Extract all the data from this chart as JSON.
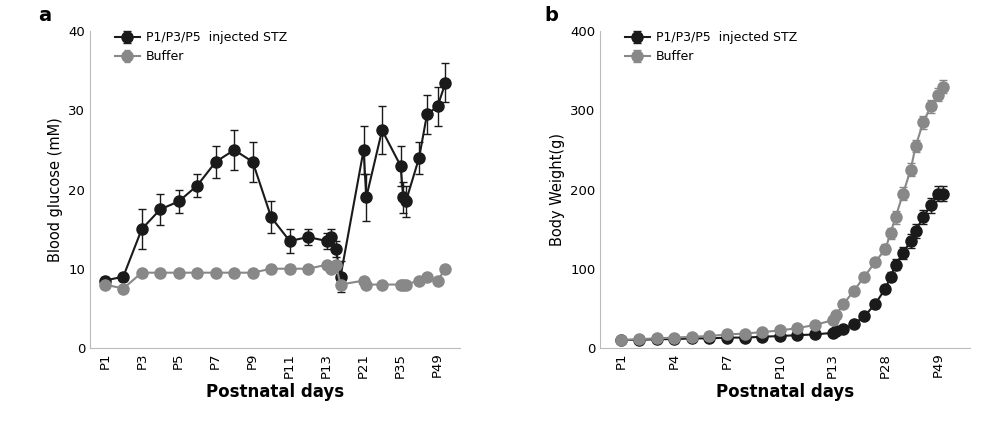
{
  "panel_a": {
    "title": "a",
    "xlabel": "Postnatal days",
    "ylabel": "Blood glucose (mM)",
    "xtick_labels": [
      "P1",
      "P3",
      "P5",
      "P7",
      "P9",
      "P11",
      "P13",
      "P21",
      "P35",
      "P49"
    ],
    "tick_days": [
      1,
      3,
      5,
      7,
      9,
      11,
      13,
      21,
      35,
      49
    ],
    "ylim": [
      0,
      40
    ],
    "yticks": [
      0,
      10,
      20,
      30,
      40
    ],
    "stz": {
      "label": "P1/P3/P5  injected STZ",
      "color": "#1a1a1a",
      "days": [
        1,
        2,
        3,
        4,
        5,
        6,
        7,
        8,
        9,
        10,
        11,
        12,
        13,
        14,
        15,
        16,
        21,
        22,
        28,
        35,
        36,
        37,
        42,
        45,
        49,
        52
      ],
      "y": [
        8.5,
        9.0,
        15.0,
        17.5,
        18.5,
        20.5,
        23.5,
        25.0,
        23.5,
        16.5,
        13.5,
        14.0,
        13.5,
        14.0,
        12.5,
        9.0,
        25.0,
        19.0,
        27.5,
        23.0,
        19.0,
        18.5,
        24.0,
        29.5,
        30.5,
        33.5
      ],
      "yerr": [
        0.5,
        0.5,
        2.5,
        2.0,
        1.5,
        1.5,
        2.0,
        2.5,
        2.5,
        2.0,
        1.5,
        1.0,
        1.0,
        1.0,
        1.0,
        2.0,
        3.0,
        3.0,
        3.0,
        2.5,
        2.0,
        2.0,
        2.0,
        2.5,
        2.5,
        2.5
      ]
    },
    "buffer": {
      "label": "Buffer",
      "color": "#888888",
      "days": [
        1,
        2,
        3,
        4,
        5,
        6,
        7,
        8,
        9,
        10,
        11,
        12,
        13,
        14,
        15,
        16,
        21,
        22,
        28,
        35,
        36,
        37,
        42,
        45,
        49,
        52
      ],
      "y": [
        8.0,
        7.5,
        9.5,
        9.5,
        9.5,
        9.5,
        9.5,
        9.5,
        9.5,
        10.0,
        10.0,
        10.0,
        10.5,
        10.0,
        10.5,
        8.0,
        8.5,
        8.0,
        8.0,
        8.0,
        8.0,
        8.0,
        8.5,
        9.0,
        8.5,
        10.0
      ],
      "yerr": [
        0.3,
        0.3,
        0.3,
        0.3,
        0.3,
        0.3,
        0.3,
        0.3,
        0.3,
        0.3,
        0.3,
        0.3,
        0.3,
        0.3,
        0.3,
        0.3,
        0.3,
        0.3,
        0.3,
        0.3,
        0.3,
        0.3,
        0.3,
        0.3,
        0.3,
        0.3
      ]
    }
  },
  "panel_b": {
    "title": "b",
    "xlabel": "Postnatal days",
    "ylabel": "Body Weight(g)",
    "xtick_labels": [
      "P1",
      "P4",
      "P7",
      "P10",
      "P13",
      "P28",
      "P49"
    ],
    "tick_days": [
      1,
      4,
      7,
      10,
      13,
      28,
      49
    ],
    "ylim": [
      0,
      400
    ],
    "yticks": [
      0,
      100,
      200,
      300,
      400
    ],
    "stz": {
      "label": "P1/P3/P5  injected STZ",
      "color": "#1a1a1a",
      "days": [
        1,
        2,
        3,
        4,
        5,
        6,
        7,
        8,
        9,
        10,
        11,
        12,
        13,
        14,
        16,
        19,
        22,
        25,
        28,
        30,
        32,
        35,
        38,
        40,
        43,
        46,
        49,
        51
      ],
      "y": [
        10,
        10,
        11,
        11,
        12,
        12,
        13,
        13,
        14,
        15,
        16,
        17,
        19,
        21,
        24,
        30,
        40,
        55,
        75,
        90,
        105,
        120,
        135,
        148,
        165,
        180,
        195,
        195
      ],
      "yerr": [
        1,
        1,
        1,
        1,
        1,
        1,
        1,
        1,
        1,
        1,
        1,
        1,
        1,
        1,
        2,
        2,
        3,
        4,
        5,
        6,
        7,
        8,
        9,
        9,
        9,
        9,
        9,
        9
      ]
    },
    "buffer": {
      "label": "Buffer",
      "color": "#888888",
      "days": [
        1,
        2,
        3,
        4,
        5,
        6,
        7,
        8,
        9,
        10,
        11,
        12,
        13,
        14,
        16,
        19,
        22,
        25,
        28,
        30,
        32,
        35,
        38,
        40,
        43,
        46,
        49,
        51
      ],
      "y": [
        10,
        11,
        12,
        13,
        14,
        15,
        17,
        18,
        20,
        22,
        25,
        29,
        35,
        42,
        55,
        72,
        90,
        108,
        125,
        145,
        165,
        195,
        225,
        255,
        285,
        305,
        320,
        330
      ],
      "yerr": [
        1,
        1,
        1,
        1,
        1,
        1,
        1,
        1,
        1,
        1,
        1,
        1,
        1,
        2,
        2,
        3,
        4,
        5,
        6,
        7,
        8,
        8,
        8,
        8,
        8,
        8,
        8,
        8
      ]
    }
  },
  "marker_size": 8,
  "linewidth": 1.5
}
